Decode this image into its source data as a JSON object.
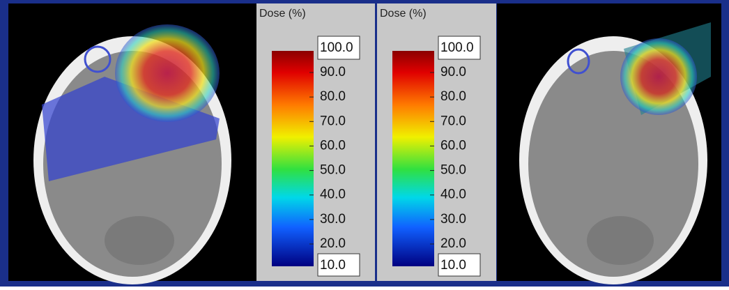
{
  "legends": [
    {
      "title": "Dose (%)",
      "max_box": "100.0",
      "min_box": "10.0",
      "ticks": [
        "90.0",
        "80.0",
        "70.0",
        "60.0",
        "50.0",
        "40.0",
        "30.0",
        "20.0"
      ]
    },
    {
      "title": "Dose (%)",
      "max_box": "100.0",
      "min_box": "10.0",
      "ticks": [
        "90.0",
        "80.0",
        "70.0",
        "60.0",
        "50.0",
        "40.0",
        "30.0",
        "20.0"
      ]
    }
  ]
}
